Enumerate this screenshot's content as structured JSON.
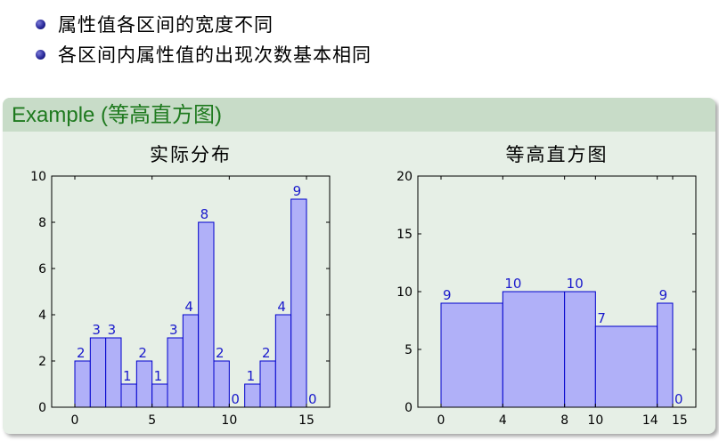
{
  "bullets": [
    "属性值各区间的宽度不同",
    "各区间内属性值的出现次数基本相同"
  ],
  "block": {
    "title": "Example (等高直方图)"
  },
  "colors": {
    "bar_fill": "#b0b0f8",
    "bar_stroke": "#0000cc",
    "label": "#1a1acc",
    "title_green": "#1f7a1f"
  },
  "chart_data": [
    {
      "type": "bar",
      "title": "实际分布",
      "x_ticks": [
        "0",
        "5",
        "10",
        "15"
      ],
      "xlim": [
        -1.5,
        16.5
      ],
      "y_ticks": [
        "0",
        "2",
        "4",
        "6",
        "8",
        "10"
      ],
      "ylim": [
        0,
        10
      ],
      "bins": [
        {
          "start": 0,
          "end": 1,
          "value": 2
        },
        {
          "start": 1,
          "end": 2,
          "value": 3
        },
        {
          "start": 2,
          "end": 3,
          "value": 3
        },
        {
          "start": 3,
          "end": 4,
          "value": 1
        },
        {
          "start": 4,
          "end": 5,
          "value": 2
        },
        {
          "start": 5,
          "end": 6,
          "value": 1
        },
        {
          "start": 6,
          "end": 7,
          "value": 3
        },
        {
          "start": 7,
          "end": 8,
          "value": 4
        },
        {
          "start": 8,
          "end": 9,
          "value": 8
        },
        {
          "start": 9,
          "end": 10,
          "value": 2
        },
        {
          "start": 10,
          "end": 11,
          "value": 0
        },
        {
          "start": 11,
          "end": 12,
          "value": 1
        },
        {
          "start": 12,
          "end": 13,
          "value": 2
        },
        {
          "start": 13,
          "end": 14,
          "value": 4
        },
        {
          "start": 14,
          "end": 15,
          "value": 9
        },
        {
          "start": 15,
          "end": 16,
          "value": 0
        }
      ],
      "grid": false
    },
    {
      "type": "bar",
      "title": "等高直方图",
      "x_ticks": [
        "0",
        "4",
        "8",
        "10",
        "14",
        "15"
      ],
      "xlim": [
        -1.5,
        16.5
      ],
      "y_ticks": [
        "0",
        "5",
        "10",
        "15",
        "20"
      ],
      "ylim": [
        0,
        20
      ],
      "bins": [
        {
          "start": 0,
          "end": 4,
          "value": 9
        },
        {
          "start": 4,
          "end": 8,
          "value": 10
        },
        {
          "start": 8,
          "end": 10,
          "value": 10
        },
        {
          "start": 10,
          "end": 14,
          "value": 7
        },
        {
          "start": 14,
          "end": 15,
          "value": 9
        },
        {
          "start": 15,
          "end": 16,
          "value": 0
        }
      ],
      "grid": false
    }
  ]
}
